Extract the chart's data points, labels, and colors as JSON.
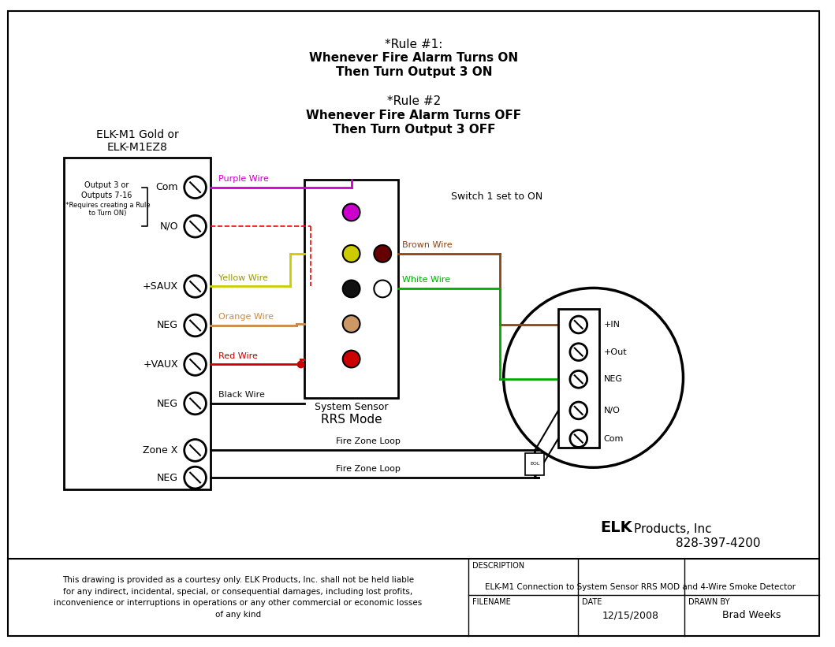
{
  "rule1_line1": "*Rule #1:",
  "rule1_line2": "Whenever Fire Alarm Turns ON",
  "rule1_line3": "Then Turn Output 3 ON",
  "rule2_line1": "*Rule #2",
  "rule2_line2": "Whenever Fire Alarm Turns OFF",
  "rule2_line3": "Then Turn Output 3 OFF",
  "elk_title1": "ELK-M1 Gold or",
  "elk_title2": "ELK-M1EZ8",
  "output_note": [
    "Output 3 or",
    "Outputs 7-16",
    "(*Requires creating a Rule",
    " to Turn ON)"
  ],
  "term_labels": [
    "Com",
    "N/O",
    "+SAUX",
    "NEG",
    "+VAUX",
    "NEG",
    "Zone X",
    "NEG"
  ],
  "wire_purple": "Purple Wire",
  "wire_yellow": "Yellow Wire",
  "wire_orange": "Orange Wire",
  "wire_red": "Red Wire",
  "wire_black": "Black Wire",
  "wire_brown": "Brown Wire",
  "wire_white": "White Wire",
  "wire_fire1": "Fire Zone Loop",
  "wire_fire2": "Fire Zone Loop",
  "col_purple": "#CC00CC",
  "col_yellow": "#CCCC00",
  "col_orange": "#CC8844",
  "col_red": "#CC0000",
  "col_black": "#000000",
  "col_brown": "#8B4513",
  "col_green": "#00AA00",
  "col_dkred": "#8B0000",
  "col_dkbrown": "#660000",
  "ss_label": "System Sensor",
  "ss_label2": "RRS Mode",
  "switch_label": "Switch 1 set to ON",
  "det_labels": [
    "+IN",
    "+Out",
    "NEG",
    "N/O",
    "Com"
  ],
  "footer_left": "This drawing is provided as a courtesy only. ELK Products, Inc. shall not be held liable\nfor any indirect, incidental, special, or consequential damages, including lost profits,\ninconvenience or interruptions in operations or any other commercial or economic losses\nof any kind",
  "footer_elk_bold": "ELK",
  "footer_elk_rest": "Products, Inc",
  "footer_phone": "828-397-4200",
  "footer_desc_label": "DESCRIPTION",
  "footer_desc": "ELK-M1 Connection to System Sensor RRS MOD and 4-Wire Smoke Detector",
  "footer_fn_label": "FILENAME",
  "footer_date_label": "DATE",
  "footer_date": "12/15/2008",
  "footer_drawn_label": "DRAWN BY",
  "footer_drawn": "Brad Weeks"
}
